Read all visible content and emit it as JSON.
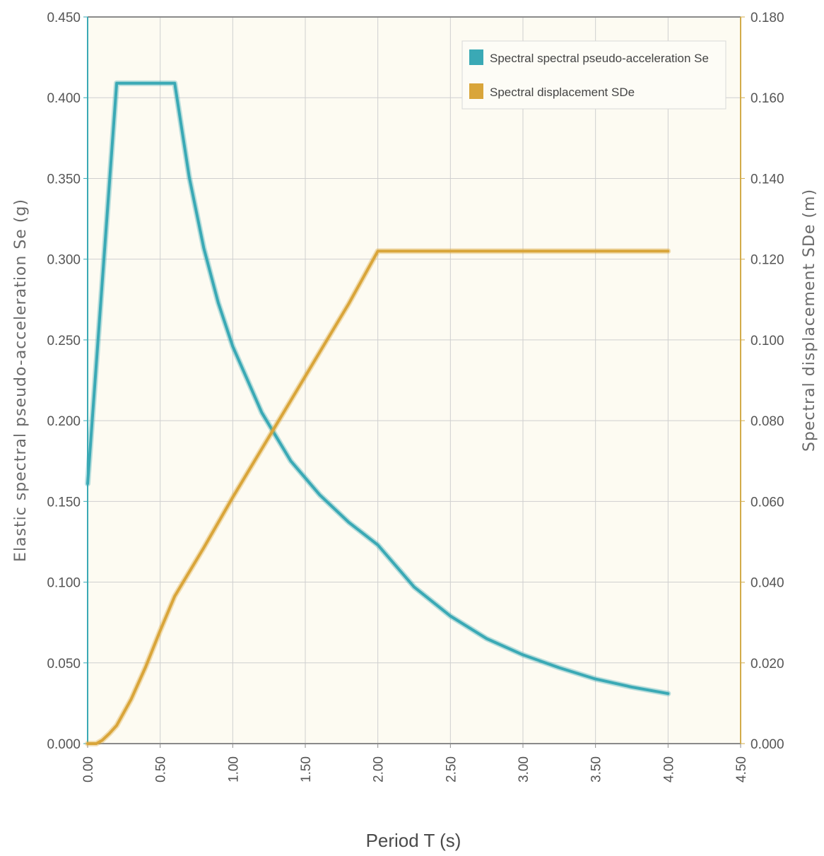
{
  "chart_data": {
    "type": "line",
    "title": "",
    "xlabel": "Period T (s)",
    "ylabel_left": "Elastic spectral pseudo-acceleration Se (g)",
    "ylabel_right": "Spectral displacement SDe (m)",
    "xlim": [
      0,
      4.5
    ],
    "ylim_left": [
      0,
      0.45
    ],
    "ylim_right": [
      0,
      0.18
    ],
    "x_ticks": [
      "0.00",
      "0.50",
      "1.00",
      "1.50",
      "2.00",
      "2.50",
      "3.00",
      "3.50",
      "4.00",
      "4.50"
    ],
    "y_left_ticks": [
      "0.000",
      "0.050",
      "0.100",
      "0.150",
      "0.200",
      "0.250",
      "0.300",
      "0.350",
      "0.400",
      "0.450"
    ],
    "y_right_ticks": [
      "0.000",
      "0.020",
      "0.040",
      "0.060",
      "0.080",
      "0.100",
      "0.120",
      "0.140",
      "0.160",
      "0.180"
    ],
    "grid": true,
    "legend_position": "top-right",
    "series": [
      {
        "name": "Spectral spectral pseudo-acceleration Se",
        "axis": "left",
        "color": "#3aa9b5",
        "x": [
          0.0,
          0.2,
          0.6,
          0.7,
          0.8,
          0.9,
          1.0,
          1.2,
          1.4,
          1.6,
          1.8,
          2.0,
          2.25,
          2.5,
          2.75,
          3.0,
          3.25,
          3.5,
          3.75,
          4.0
        ],
        "y": [
          0.161,
          0.409,
          0.409,
          0.351,
          0.307,
          0.273,
          0.246,
          0.205,
          0.175,
          0.154,
          0.137,
          0.123,
          0.097,
          0.079,
          0.065,
          0.055,
          0.047,
          0.04,
          0.035,
          0.031
        ]
      },
      {
        "name": "Spectral displacement SDe",
        "axis": "right",
        "color": "#d9a53a",
        "x": [
          0.0,
          0.06,
          0.1,
          0.15,
          0.2,
          0.3,
          0.4,
          0.5,
          0.6,
          0.8,
          1.0,
          1.2,
          1.4,
          1.6,
          1.8,
          2.0,
          2.5,
          3.0,
          3.5,
          4.0
        ],
        "y": [
          0.0,
          0.0,
          0.0008,
          0.0025,
          0.0045,
          0.011,
          0.019,
          0.028,
          0.0365,
          0.0485,
          0.061,
          0.073,
          0.085,
          0.097,
          0.109,
          0.122,
          0.122,
          0.122,
          0.122,
          0.122
        ]
      }
    ]
  },
  "colors": {
    "plot_background": "#fdfbf2",
    "grid": "#cfcfcf",
    "left_axis": "#3aa9b5",
    "right_axis": "#d2ab4a"
  }
}
